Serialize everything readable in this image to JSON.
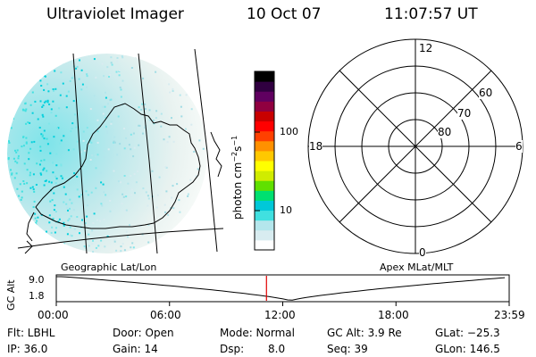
{
  "header": {
    "title": "Ultraviolet Imager",
    "date": "10 Oct 07",
    "time": "11:07:57 UT"
  },
  "colorbar": {
    "unit_label": "photon cm",
    "unit_exp1": "−2",
    "unit_mid": "s",
    "unit_exp2": "−1",
    "ticks": [
      {
        "value": 100,
        "label": "100"
      },
      {
        "value": 10,
        "label": "10"
      }
    ],
    "scale": "log",
    "colors": [
      "#ffffff",
      "#d8ecf0",
      "#b4e6ec",
      "#40e0e0",
      "#00c8d8",
      "#00e070",
      "#60e000",
      "#d0ec00",
      "#ffff00",
      "#ffc800",
      "#ff9000",
      "#ff4000",
      "#ff0000",
      "#c80000",
      "#900040",
      "#600060",
      "#300040",
      "#000000"
    ]
  },
  "polar": {
    "mlt_labels": {
      "top": "12",
      "left": "18",
      "right": "6",
      "bottom": "0"
    },
    "lat_labels": [
      "60",
      "70",
      "80"
    ]
  },
  "labels": {
    "left_panel": "Geographic Lat/Lon",
    "right_panel": "Apex MLat/MLT",
    "gc_alt_axis": "GC Alt",
    "alt_ticks": [
      "9.0",
      "1.8"
    ]
  },
  "timeline": {
    "ticks": [
      "00:00",
      "06:00",
      "12:00",
      "18:00",
      "23:59"
    ],
    "current_time_hours": 11.13,
    "marker_color": "#e00000"
  },
  "info": {
    "flt": "Flt: LBHL",
    "ip": "IP: 36.0",
    "door": "Door: Open",
    "gain": "Gain: 14",
    "mode": "Mode: Normal",
    "dsp_label": "Dsp:",
    "dsp_value": "8.0",
    "gc_alt": "GC Alt: 3.9 Re",
    "seq": "Seq: 39",
    "glat": "GLat: −25.3",
    "glon": "GLon: 146.5"
  }
}
